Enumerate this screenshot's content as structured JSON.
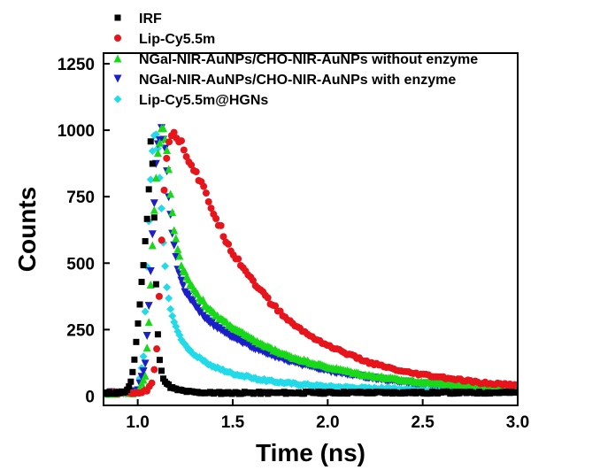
{
  "chart_data": {
    "type": "scatter",
    "xlabel": "Time (ns)",
    "ylabel": "Counts",
    "xlim": [
      0.82,
      3.0
    ],
    "ylim": [
      -35,
      1290
    ],
    "xticks": [
      1.0,
      1.5,
      2.0,
      2.5,
      3.0
    ],
    "xtick_labels": [
      "1.0",
      "1.5",
      "2.0",
      "2.5",
      "3.0"
    ],
    "yticks": [
      0,
      250,
      500,
      750,
      1000,
      1250
    ],
    "ytick_labels": [
      "0",
      "250",
      "500",
      "750",
      "1000",
      "1250"
    ],
    "legend_position": "top-left",
    "grid": false,
    "series": [
      {
        "name": "IRF",
        "color": "#000000",
        "marker": "square",
        "x": [
          0.85,
          0.88,
          0.91,
          0.94,
          0.96,
          0.98,
          1.0,
          1.02,
          1.04,
          1.06,
          1.07,
          1.08,
          1.09,
          1.1,
          1.11,
          1.12,
          1.13,
          1.15,
          1.17,
          1.2,
          1.25,
          1.3,
          1.4,
          1.5,
          1.7,
          2.0,
          2.5,
          3.0
        ],
        "y": [
          12,
          12,
          14,
          16,
          40,
          120,
          260,
          420,
          580,
          800,
          1000,
          830,
          600,
          320,
          170,
          110,
          75,
          50,
          35,
          25,
          18,
          14,
          12,
          12,
          12,
          13,
          13,
          13
        ]
      },
      {
        "name": "Lip-Cy5.5m",
        "color": "#e8141b",
        "marker": "circle",
        "x": [
          0.85,
          1.0,
          1.05,
          1.08,
          1.1,
          1.12,
          1.14,
          1.16,
          1.18,
          1.2,
          1.22,
          1.25,
          1.3,
          1.35,
          1.4,
          1.45,
          1.5,
          1.6,
          1.7,
          1.8,
          1.9,
          2.0,
          2.2,
          2.4,
          2.6,
          2.8,
          3.0
        ],
        "y": [
          12,
          12,
          20,
          60,
          180,
          480,
          800,
          960,
          1000,
          990,
          960,
          920,
          850,
          770,
          690,
          610,
          540,
          440,
          350,
          280,
          230,
          190,
          130,
          90,
          70,
          50,
          40
        ]
      },
      {
        "name": "NGal-NIR-AuNPs/CHO-NIR-AuNPs without enzyme",
        "color": "#19d819",
        "marker": "triangle-up",
        "x": [
          0.85,
          1.0,
          1.04,
          1.06,
          1.08,
          1.1,
          1.12,
          1.14,
          1.16,
          1.18,
          1.2,
          1.22,
          1.25,
          1.3,
          1.35,
          1.4,
          1.5,
          1.6,
          1.7,
          1.8,
          2.0,
          2.2,
          2.4,
          2.6,
          2.8,
          3.0
        ],
        "y": [
          12,
          14,
          80,
          300,
          600,
          880,
          990,
          1000,
          870,
          700,
          590,
          520,
          460,
          400,
          350,
          310,
          260,
          215,
          180,
          150,
          110,
          80,
          60,
          48,
          40,
          35
        ]
      },
      {
        "name": "NGal-NIR-AuNPs/CHO-NIR-AuNPs with enzyme",
        "color": "#1a1fc8",
        "marker": "triangle-down",
        "x": [
          0.85,
          1.0,
          1.04,
          1.06,
          1.08,
          1.1,
          1.12,
          1.14,
          1.16,
          1.18,
          1.2,
          1.22,
          1.25,
          1.3,
          1.35,
          1.4,
          1.5,
          1.6,
          1.7,
          1.8,
          2.0,
          2.2,
          2.4,
          2.6,
          2.8,
          3.0
        ],
        "y": [
          12,
          15,
          120,
          350,
          650,
          900,
          1000,
          970,
          780,
          620,
          520,
          450,
          390,
          340,
          300,
          265,
          220,
          185,
          155,
          130,
          95,
          70,
          52,
          42,
          35,
          30
        ]
      },
      {
        "name": "Lip-Cy5.5m@HGNs",
        "color": "#22dbe8",
        "marker": "diamond",
        "x": [
          0.85,
          1.0,
          1.03,
          1.05,
          1.07,
          1.09,
          1.11,
          1.13,
          1.15,
          1.17,
          1.2,
          1.22,
          1.25,
          1.3,
          1.35,
          1.4,
          1.5,
          1.6,
          1.7,
          1.8,
          2.0,
          2.2,
          2.4,
          2.6,
          2.8,
          3.0
        ],
        "y": [
          12,
          14,
          150,
          500,
          850,
          1000,
          920,
          620,
          430,
          330,
          260,
          225,
          190,
          155,
          130,
          110,
          85,
          68,
          56,
          48,
          36,
          30,
          26,
          22,
          20,
          18
        ]
      }
    ]
  }
}
